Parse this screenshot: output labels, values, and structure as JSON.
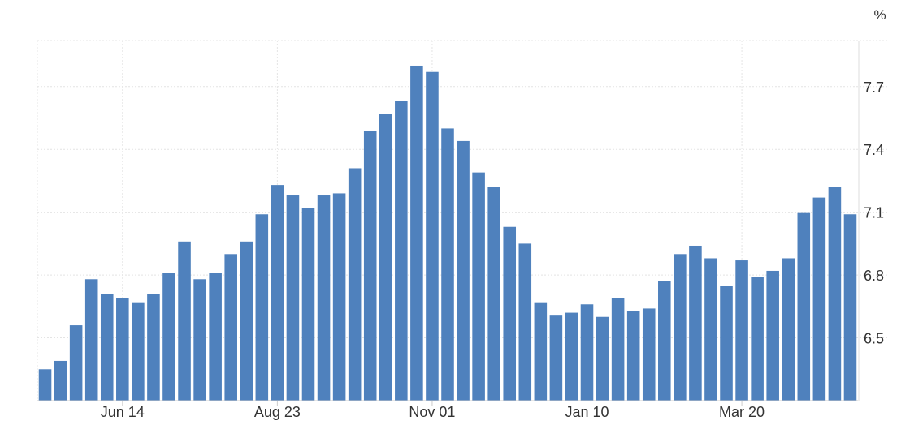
{
  "chart_data": {
    "type": "bar",
    "unit_label": "%",
    "color": "#4f81bd",
    "grid": true,
    "ylim": [
      6.2,
      7.92
    ],
    "yticks": [
      "6.5",
      "6.8",
      "7.1",
      "7.4",
      "7.7"
    ],
    "x_tick_labels": [
      {
        "label": "Jun 14",
        "index": 5
      },
      {
        "label": "Aug 23",
        "index": 15
      },
      {
        "label": "Nov 01",
        "index": 25
      },
      {
        "label": "Jan 10",
        "index": 35
      },
      {
        "label": "Mar 20",
        "index": 45
      }
    ],
    "values": [
      6.35,
      6.39,
      6.56,
      6.78,
      6.71,
      6.69,
      6.67,
      6.71,
      6.81,
      6.96,
      6.78,
      6.81,
      6.9,
      6.96,
      7.09,
      7.23,
      7.18,
      7.12,
      7.18,
      7.19,
      7.31,
      7.49,
      7.57,
      7.63,
      7.8,
      7.77,
      7.5,
      7.44,
      7.29,
      7.22,
      7.03,
      6.95,
      6.67,
      6.61,
      6.62,
      6.66,
      6.6,
      6.69,
      6.63,
      6.64,
      6.77,
      6.9,
      6.94,
      6.88,
      6.75,
      6.87,
      6.79,
      6.82,
      6.88,
      7.1,
      7.17,
      7.22,
      7.09
    ]
  }
}
